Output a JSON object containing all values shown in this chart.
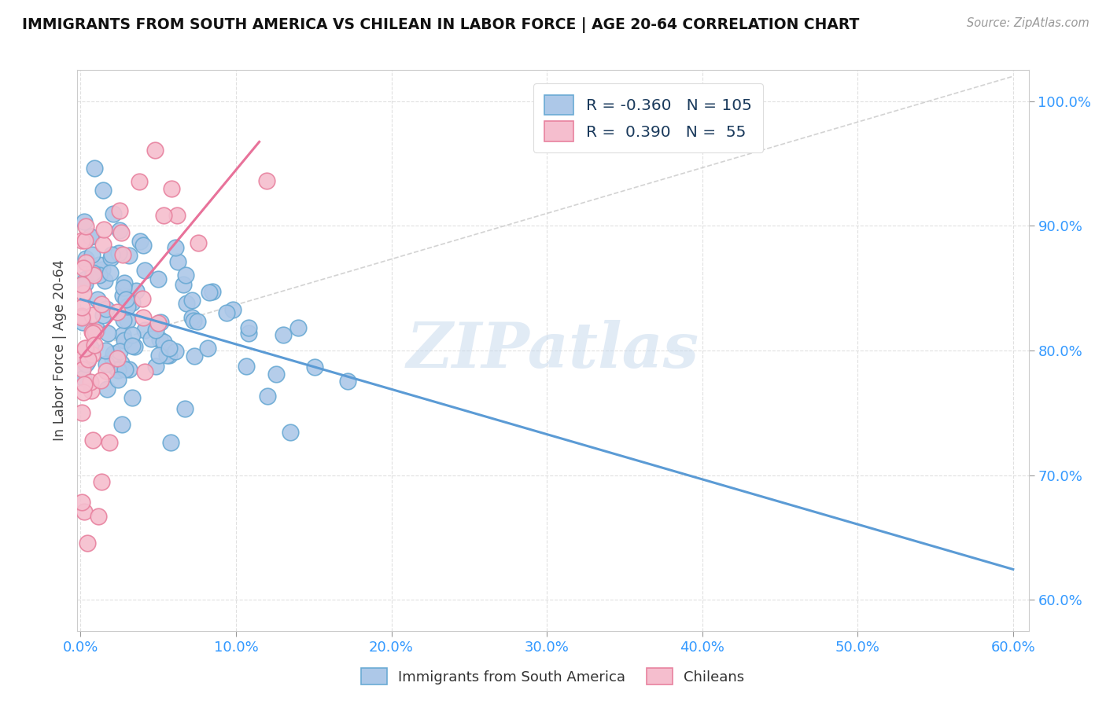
{
  "title": "IMMIGRANTS FROM SOUTH AMERICA VS CHILEAN IN LABOR FORCE | AGE 20-64 CORRELATION CHART",
  "source": "Source: ZipAtlas.com",
  "ylabel": "In Labor Force | Age 20-64",
  "xlim": [
    -0.002,
    0.61
  ],
  "ylim": [
    0.575,
    1.025
  ],
  "xtick_values": [
    0.0,
    0.1,
    0.2,
    0.3,
    0.4,
    0.5,
    0.6
  ],
  "xtick_labels": [
    "0.0%",
    "10.0%",
    "20.0%",
    "30.0%",
    "40.0%",
    "50.0%",
    "60.0%"
  ],
  "ytick_values": [
    0.6,
    0.7,
    0.8,
    0.9,
    1.0
  ],
  "ytick_labels": [
    "60.0%",
    "70.0%",
    "80.0%",
    "90.0%",
    "100.0%"
  ],
  "blue_color": "#adc8e8",
  "blue_edge": "#6aaad4",
  "pink_color": "#f5bece",
  "pink_edge": "#e8829f",
  "blue_R": -0.36,
  "blue_N": 105,
  "pink_R": 0.39,
  "pink_N": 55,
  "trend_blue_color": "#5b9bd5",
  "trend_pink_color": "#e8729a",
  "trend_dash_color": "#c8c8c8",
  "watermark": "ZIPatlas",
  "legend_text_color": "#1a3a5c",
  "legend_val_color": "#2e75b6",
  "axis_label_color": "#3399ff",
  "title_color": "#111111",
  "source_color": "#999999"
}
